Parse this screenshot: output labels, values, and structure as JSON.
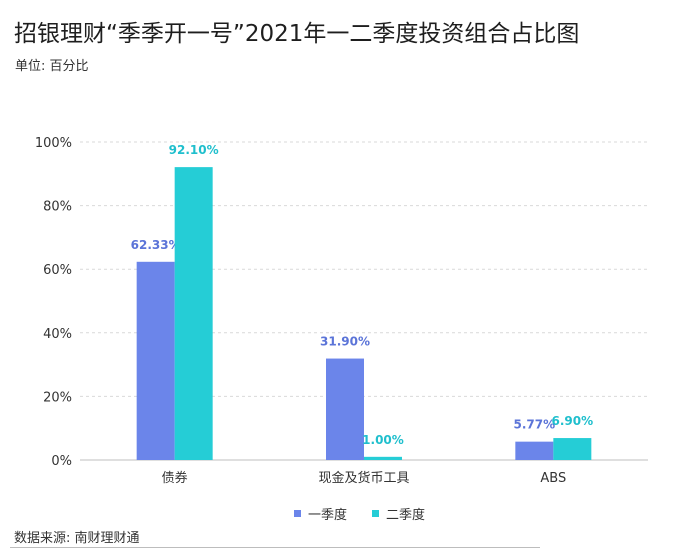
{
  "header": {
    "title": "招银理财“季季开一号”2021年一二季度投资组合占比图",
    "unit": "单位: 百分比"
  },
  "footer": {
    "source": "数据来源: 南财理财通"
  },
  "chart_data": {
    "type": "bar",
    "title": "招银理财“季季开一号”2021年一二季度投资组合占比图",
    "subtitle": "单位: 百分比",
    "categories": [
      "债券",
      "现金及货币工具",
      "ABS"
    ],
    "series": [
      {
        "name": "一季度",
        "values": [
          62.33,
          31.9,
          5.77
        ],
        "labels": [
          "62.33%",
          "31.90%",
          "5.77%"
        ],
        "color": "#6b85ea",
        "label_color": "#5b74d8"
      },
      {
        "name": "二季度",
        "values": [
          92.1,
          1.0,
          6.9
        ],
        "labels": [
          "92.10%",
          "1.00%",
          "6.90%"
        ],
        "color": "#25cdd6",
        "label_color": "#1fbfcd"
      }
    ],
    "ylim": [
      0,
      100
    ],
    "yticks": [
      0,
      20,
      40,
      60,
      80,
      100
    ],
    "ytick_labels": [
      "0%",
      "20%",
      "40%",
      "60%",
      "80%",
      "100%"
    ],
    "xlabel": "",
    "ylabel": "",
    "grid": true,
    "legend": "bottom-center"
  }
}
